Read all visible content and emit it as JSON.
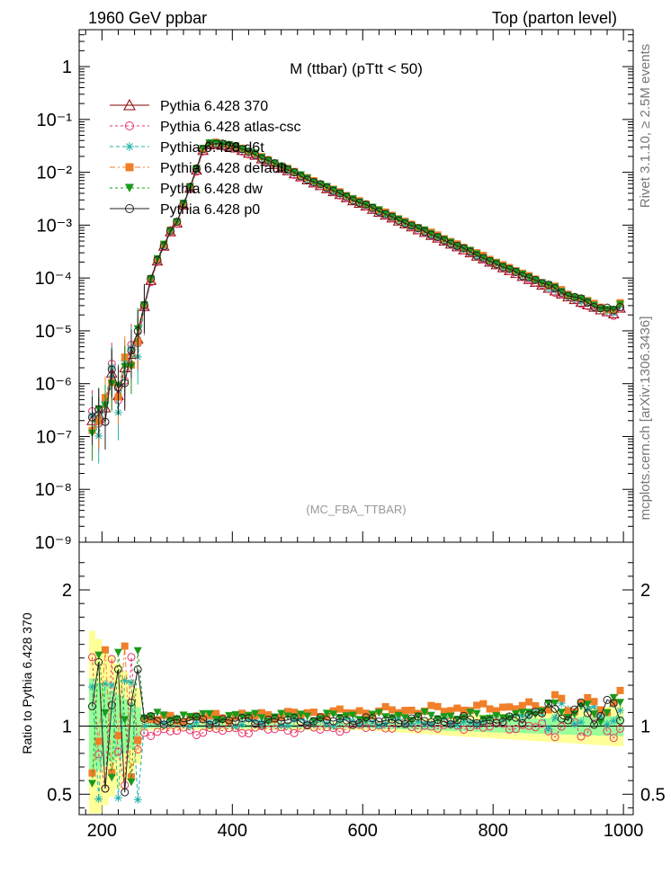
{
  "header": {
    "left": "1960 GeV ppbar",
    "right": "Top (parton level)"
  },
  "side_text": {
    "rivet": "Rivet 3.1.10, ≥ 2.5M events",
    "mcplots": "mcplots.cern.ch [arXiv:1306.3436]"
  },
  "chart_data": {
    "type": "line",
    "title": "M (ttbar) (pTtt < 50)",
    "annotation": "(MC_FBA_TTBAR)",
    "log_y": true,
    "ylim": [
      1e-09,
      5
    ],
    "xlim": [
      165,
      1015
    ],
    "ratio_ylim": [
      0.35,
      2.35
    ],
    "ratio_ylabel": "Ratio to Pythia 6.428 370",
    "x_ticks": [
      "200",
      "400",
      "600",
      "800",
      "1000"
    ],
    "y_ticks": [
      "10⁻⁹",
      "10⁻⁸",
      "10⁻⁷",
      "10⁻⁶",
      "10⁻⁵",
      "10⁻⁴",
      "10⁻³",
      "10⁻²",
      "10⁻¹",
      "1"
    ],
    "ratio_ticks": [
      "0.5",
      "1",
      "2"
    ],
    "legend_position": "top-left",
    "series": [
      {
        "name": "Pythia 6.428 370",
        "color": "#8b0000",
        "marker": "triangle-open",
        "dash": ""
      },
      {
        "name": "Pythia 6.428 atlas-csc",
        "color": "#e8336a",
        "marker": "circle-open",
        "dash": "3,3"
      },
      {
        "name": "Pythia 6.428 d6t",
        "color": "#20b2aa",
        "marker": "star",
        "dash": "4,3"
      },
      {
        "name": "Pythia 6.428 default",
        "color": "#f07f2a",
        "marker": "square-filled",
        "dash": "6,3,2,3"
      },
      {
        "name": "Pythia 6.428 dw",
        "color": "#1a9a1a",
        "marker": "triangle-down-filled",
        "dash": "3,3"
      },
      {
        "name": "Pythia 6.428 p0",
        "color": "#222222",
        "marker": "circle-open",
        "dash": ""
      }
    ],
    "reference": {
      "x": [
        185,
        195,
        205,
        215,
        225,
        235,
        245,
        255,
        265,
        275,
        285,
        295,
        305,
        315,
        325,
        335,
        345,
        355,
        365,
        375,
        385,
        395,
        405,
        415,
        425,
        435,
        445,
        455,
        465,
        475,
        485,
        495,
        505,
        515,
        525,
        535,
        545,
        555,
        565,
        575,
        585,
        595,
        605,
        615,
        625,
        635,
        645,
        655,
        665,
        675,
        685,
        695,
        705,
        715,
        725,
        735,
        745,
        755,
        765,
        775,
        785,
        795,
        805,
        815,
        825,
        835,
        845,
        855,
        865,
        875,
        885,
        895,
        905,
        915,
        925,
        935,
        945,
        955,
        965,
        975,
        985,
        995
      ],
      "y": [
        2e-07,
        2.2e-07,
        3.5e-07,
        1.6e-06,
        6e-07,
        2e-06,
        3.6e-06,
        7e-06,
        2.9e-05,
        9e-05,
        0.00021,
        0.0004,
        0.00075,
        0.0011,
        0.0024,
        0.005,
        0.011,
        0.026,
        0.033,
        0.034,
        0.033,
        0.031,
        0.029,
        0.026,
        0.023,
        0.021,
        0.018,
        0.016,
        0.014,
        0.012,
        0.0107,
        0.0094,
        0.0082,
        0.0072,
        0.0063,
        0.0056,
        0.0049,
        0.0043,
        0.0038,
        0.0033,
        0.0029,
        0.0026,
        0.0023,
        0.002,
        0.00176,
        0.00155,
        0.00137,
        0.0012,
        0.00106,
        0.00093,
        0.00082,
        0.00073,
        0.00064,
        0.00057,
        0.0005,
        0.00044,
        0.00039,
        0.00034,
        0.0003,
        0.00026,
        0.00023,
        0.0002,
        0.000178,
        0.000156,
        0.000138,
        0.000122,
        0.000107,
        9.4e-05,
        8.3e-05,
        7.3e-05,
        6.4e-05,
        5.7e-05,
        5e-05,
        4.4e-05,
        3.9e-05,
        3.5e-05,
        3.1e-05,
        2.8e-05,
        2.5e-05,
        2.3e-05,
        2.1e-05,
        2.7e-05
      ]
    }
  }
}
